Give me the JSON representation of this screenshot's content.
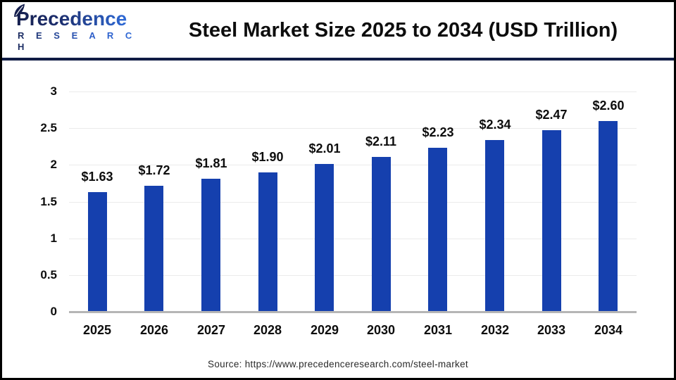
{
  "logo": {
    "brand": "Precedence",
    "subbrand": "R E S E A R C H"
  },
  "header": {
    "title": "Steel Market Size 2025 to 2034 (USD Trillion)"
  },
  "footer": {
    "source": "Source: https://www.precedenceresearch.com/steel-market"
  },
  "colors": {
    "bar": "#1540ae",
    "separator": "#101b44",
    "grid": "#ebebeb",
    "axis_line": "#b5b5b5",
    "logo_dark": "#151f4e",
    "logo_light": "#2f6bd8",
    "text": "#0d0d0d"
  },
  "chart_data": {
    "type": "bar",
    "title": "Steel Market Size 2025 to 2034 (USD Trillion)",
    "categories": [
      "2025",
      "2026",
      "2027",
      "2028",
      "2029",
      "2030",
      "2031",
      "2032",
      "2033",
      "2034"
    ],
    "values": [
      1.63,
      1.72,
      1.81,
      1.9,
      2.01,
      2.11,
      2.23,
      2.34,
      2.47,
      2.6
    ],
    "data_labels": [
      "$1.63",
      "$1.72",
      "$1.81",
      "$1.90",
      "$2.01",
      "$2.11",
      "$2.23",
      "$2.34",
      "$2.47",
      "$2.60"
    ],
    "xlabel": "",
    "ylabel": "",
    "ylim": [
      0,
      3
    ],
    "yticks": [
      0,
      0.5,
      1,
      1.5,
      2,
      2.5,
      3
    ],
    "ytick_labels": [
      "0",
      "0.5",
      "1",
      "1.5",
      "2",
      "2.5",
      "3"
    ],
    "grid": true,
    "legend_position": "none",
    "bar_color": "#1540ae"
  }
}
